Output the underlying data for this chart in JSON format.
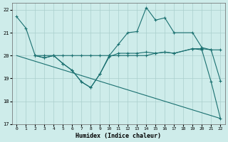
{
  "xlabel": "Humidex (Indice chaleur)",
  "background_color": "#ceecea",
  "grid_color": "#aacfcc",
  "line_color": "#1a7070",
  "xlim": [
    -0.5,
    22.5
  ],
  "ylim": [
    17,
    22.3
  ],
  "yticks": [
    17,
    18,
    19,
    20,
    21,
    22
  ],
  "xticks": [
    0,
    1,
    2,
    3,
    4,
    5,
    6,
    7,
    8,
    9,
    10,
    11,
    12,
    13,
    14,
    15,
    16,
    17,
    18,
    19,
    20,
    21,
    22
  ],
  "line1_x": [
    0,
    1,
    2,
    3,
    4,
    5,
    6,
    7,
    8,
    9,
    10,
    11,
    12,
    13,
    14,
    15,
    16,
    17,
    19,
    20,
    21,
    22
  ],
  "line1_y": [
    21.7,
    21.2,
    20.0,
    19.9,
    20.0,
    19.65,
    19.35,
    18.85,
    18.6,
    19.2,
    20.0,
    20.5,
    21.0,
    21.05,
    22.1,
    21.55,
    21.65,
    21.0,
    21.0,
    20.35,
    20.25,
    18.9
  ],
  "line2_x": [
    2,
    3,
    4,
    5,
    6,
    7,
    8,
    9,
    10,
    11,
    12,
    13,
    14,
    15,
    16,
    17,
    19,
    20,
    21,
    22
  ],
  "line2_y": [
    20.0,
    20.0,
    20.0,
    20.0,
    20.0,
    20.0,
    20.0,
    20.0,
    20.0,
    20.0,
    20.0,
    20.0,
    20.0,
    20.1,
    20.15,
    20.1,
    20.3,
    20.3,
    20.25,
    20.25
  ],
  "line3_x": [
    2,
    3,
    4,
    5,
    6,
    7,
    8,
    9,
    10,
    11,
    12,
    13,
    14,
    15,
    16,
    17,
    19,
    20,
    21,
    22
  ],
  "line3_y": [
    20.0,
    19.9,
    20.0,
    19.65,
    19.35,
    18.85,
    18.6,
    19.2,
    19.95,
    20.1,
    20.1,
    20.1,
    20.15,
    20.1,
    20.15,
    20.1,
    20.3,
    20.25,
    18.85,
    17.25
  ],
  "line4_x": [
    0,
    22
  ],
  "line4_y": [
    20.0,
    17.25
  ]
}
